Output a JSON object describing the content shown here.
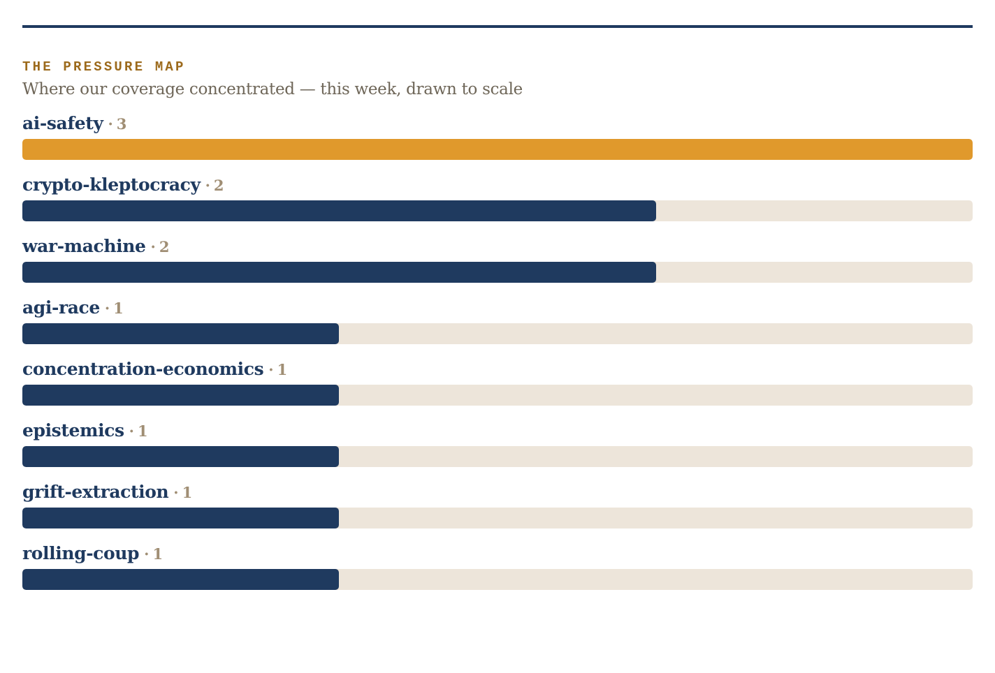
{
  "header": {
    "kicker": "THE PRESSURE MAP",
    "subtitle": "Where our coverage concentrated — this week, drawn to scale",
    "separator": "·"
  },
  "colors": {
    "rule": "#1f3a5f",
    "kicker": "#9c6a1c",
    "subtitle": "#6e6658",
    "label": "#1f3a5f",
    "count": "#a08e74",
    "track": "#ede5da",
    "bar": "#1f3a5f",
    "highlight": "#e0992c"
  },
  "chart_data": {
    "type": "bar",
    "orientation": "horizontal",
    "categories": [
      "ai-safety",
      "crypto-kleptocracy",
      "war-machine",
      "agi-race",
      "concentration-economics",
      "epistemics",
      "grift-extraction",
      "rolling-coup"
    ],
    "values": [
      3,
      2,
      2,
      1,
      1,
      1,
      1,
      1
    ],
    "xlim": [
      0,
      3
    ],
    "highlight_index": 0,
    "grid": false,
    "legend": "none"
  }
}
